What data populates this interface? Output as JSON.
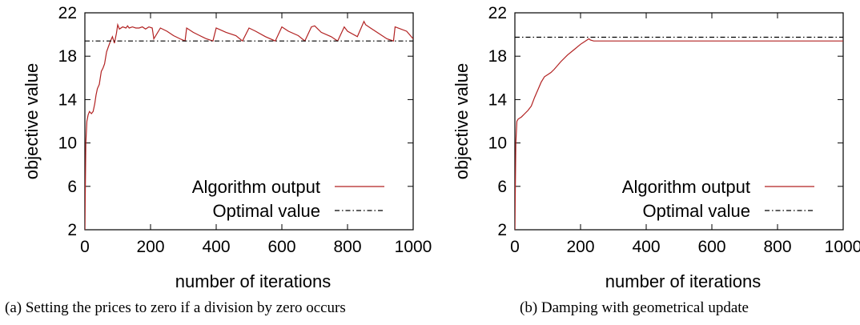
{
  "figure": {
    "panels": [
      {
        "caption_tag": "(a)",
        "caption_text": "Setting the prices to zero if a division by zero occurs"
      },
      {
        "caption_tag": "(b)",
        "caption_text": "Damping with geometrical update"
      }
    ]
  },
  "chart_data": [
    {
      "type": "line",
      "title": "",
      "xlabel": "number of iterations",
      "ylabel": "objective value",
      "xlim": [
        0,
        1000
      ],
      "ylim": [
        2,
        22
      ],
      "xticks": [
        0,
        200,
        400,
        600,
        800,
        1000
      ],
      "yticks": [
        2,
        6,
        10,
        14,
        18,
        22
      ],
      "legend_position": "bottom-right",
      "series": [
        {
          "name": "Algorithm output",
          "color": "#b22222",
          "style": "solid",
          "x": [
            0,
            3,
            6,
            10,
            14,
            20,
            25,
            30,
            34,
            38,
            44,
            50,
            55,
            60,
            66,
            72,
            78,
            84,
            90,
            96,
            100,
            105,
            115,
            125,
            130,
            135,
            145,
            155,
            165,
            175,
            185,
            195,
            205,
            210,
            230,
            250,
            270,
            290,
            305,
            310,
            330,
            350,
            370,
            390,
            400,
            430,
            460,
            480,
            500,
            520,
            550,
            580,
            600,
            620,
            650,
            670,
            690,
            700,
            720,
            750,
            770,
            790,
            800,
            830,
            850,
            855,
            870,
            890,
            920,
            940,
            945,
            980,
            1000
          ],
          "y": [
            2.0,
            10.0,
            12.0,
            12.6,
            12.9,
            12.7,
            12.9,
            13.6,
            14.4,
            15.0,
            15.4,
            16.6,
            16.9,
            17.3,
            18.4,
            18.9,
            19.4,
            19.8,
            19.2,
            20.1,
            20.9,
            20.5,
            20.7,
            20.6,
            20.8,
            20.6,
            20.7,
            20.6,
            20.6,
            20.7,
            20.5,
            20.7,
            20.6,
            19.6,
            20.6,
            20.3,
            19.9,
            19.6,
            19.4,
            20.6,
            20.2,
            19.9,
            19.6,
            19.4,
            20.6,
            20.2,
            19.9,
            19.4,
            20.6,
            20.3,
            19.8,
            19.4,
            20.7,
            20.3,
            19.9,
            19.4,
            20.7,
            20.8,
            20.2,
            19.8,
            19.4,
            20.7,
            20.3,
            19.8,
            21.2,
            20.9,
            20.6,
            20.2,
            19.6,
            19.4,
            20.7,
            20.3,
            19.6
          ]
        },
        {
          "name": "Optimal value",
          "color": "#000000",
          "style": "dash-dot",
          "x": [
            0,
            1000
          ],
          "y": [
            19.4,
            19.4
          ]
        }
      ]
    },
    {
      "type": "line",
      "title": "",
      "xlabel": "number of iterations",
      "ylabel": "objective value",
      "xlim": [
        0,
        1000
      ],
      "ylim": [
        2,
        22
      ],
      "xticks": [
        0,
        200,
        400,
        600,
        800,
        1000
      ],
      "yticks": [
        2,
        6,
        10,
        14,
        18,
        22
      ],
      "legend_position": "bottom-right",
      "series": [
        {
          "name": "Algorithm output",
          "color": "#b22222",
          "style": "solid",
          "x": [
            0,
            3,
            6,
            10,
            20,
            30,
            40,
            50,
            60,
            70,
            80,
            90,
            100,
            110,
            120,
            140,
            160,
            180,
            200,
            215,
            225,
            230,
            240,
            250,
            300,
            400,
            500,
            600,
            700,
            800,
            900,
            1000
          ],
          "y": [
            2.0,
            10.0,
            12.0,
            12.2,
            12.4,
            12.7,
            13.0,
            13.4,
            14.2,
            14.9,
            15.6,
            16.1,
            16.3,
            16.5,
            16.8,
            17.5,
            18.1,
            18.6,
            19.1,
            19.4,
            19.6,
            19.5,
            19.4,
            19.4,
            19.4,
            19.4,
            19.4,
            19.4,
            19.4,
            19.4,
            19.4,
            19.4
          ]
        },
        {
          "name": "Optimal value",
          "color": "#000000",
          "style": "dash-dot",
          "x": [
            0,
            1000
          ],
          "y": [
            19.75,
            19.75
          ]
        }
      ]
    }
  ]
}
